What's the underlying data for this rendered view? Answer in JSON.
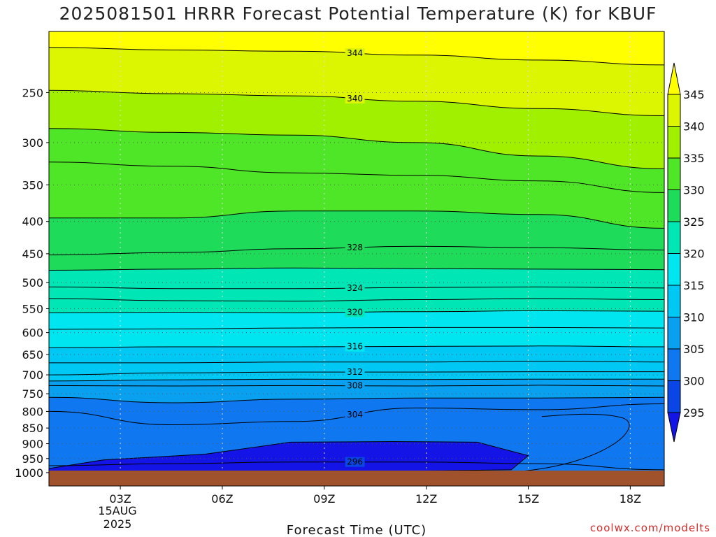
{
  "chart_data": {
    "type": "heatmap",
    "title": "2025081501 HRRR Forecast Potential Temperature (K) for KBUF",
    "xlabel": "Forecast Time (UTC)",
    "ylabel": "",
    "credit": "coolwx.com/modelts",
    "y_axis": {
      "scale": "log-pressure",
      "range": [
        1050,
        200
      ],
      "ticks": [
        "250",
        "300",
        "350",
        "400",
        "450",
        "500",
        "550",
        "600",
        "650",
        "700",
        "750",
        "800",
        "850",
        "900",
        "950",
        "1000"
      ]
    },
    "x_axis": {
      "range_hours": [
        0.9,
        19.0
      ],
      "ticks": [
        "03Z",
        "06Z",
        "09Z",
        "12Z",
        "15Z",
        "18Z"
      ],
      "date_label": [
        "15AUG",
        "2025"
      ]
    },
    "grid": true,
    "legend_position": "right",
    "colorbar": {
      "levels": [
        295,
        300,
        305,
        310,
        315,
        320,
        325,
        330,
        335,
        340,
        345
      ],
      "level_labels": [
        "295",
        "300",
        "305",
        "310",
        "315",
        "320",
        "325",
        "330",
        "335",
        "340",
        "345"
      ],
      "colors": [
        "#1414e6",
        "#0a46e6",
        "#0f78f0",
        "#0aa0f0",
        "#00c8f5",
        "#00e6f0",
        "#00e6b4",
        "#1edc5a",
        "#50e628",
        "#a0f000",
        "#dcf500",
        "#ffff00"
      ]
    },
    "ground_color": "#a0522d",
    "contour_lines": [
      {
        "value": 344,
        "pressure": [
          212,
          214,
          215,
          218,
          222,
          226
        ],
        "label": "344"
      },
      {
        "value": 340,
        "pressure": [
          248,
          251,
          253,
          258,
          265,
          272
        ],
        "label": "340"
      },
      {
        "value": 336,
        "pressure": [
          285,
          289,
          292,
          300,
          315,
          330
        ]
      },
      {
        "value": 332,
        "pressure": [
          322,
          327,
          335,
          338,
          345,
          360
        ]
      },
      {
        "value": 330,
        "pressure": [
          395,
          395,
          385,
          385,
          390,
          410
        ]
      },
      {
        "value": 328,
        "pressure": [
          452,
          448,
          442,
          438,
          440,
          444
        ],
        "label": "328"
      },
      {
        "value": 326,
        "pressure": [
          478,
          476,
          474,
          475,
          476,
          477
        ]
      },
      {
        "value": 324,
        "pressure": [
          508,
          511,
          511,
          509,
          508,
          510
        ],
        "label": "324"
      },
      {
        "value": 322,
        "pressure": [
          530,
          534,
          535,
          532,
          530,
          532
        ]
      },
      {
        "value": 320,
        "pressure": [
          558,
          557,
          558,
          556,
          554,
          555
        ],
        "label": "320"
      },
      {
        "value": 318,
        "pressure": [
          593,
          592,
          590,
          589,
          589,
          590
        ]
      },
      {
        "value": 316,
        "pressure": [
          634,
          632,
          632,
          631,
          630,
          632
        ],
        "label": "316"
      },
      {
        "value": 314,
        "pressure": [
          670,
          670,
          668,
          668,
          666,
          668
        ]
      },
      {
        "value": 312,
        "pressure": [
          700,
          695,
          693,
          693,
          692,
          692
        ],
        "label": "312"
      },
      {
        "value": 310,
        "pressure": [
          716,
          713,
          711,
          712,
          711,
          711
        ]
      },
      {
        "value": 308,
        "pressure": [
          728,
          729,
          728,
          729,
          727,
          729
        ],
        "label": "308"
      },
      {
        "value": 306,
        "pressure": [
          760,
          775,
          765,
          762,
          762,
          760
        ]
      },
      {
        "value": 304,
        "pressure": [
          800,
          840,
          830,
          790,
          795,
          778
        ],
        "label": "304"
      },
      {
        "value": 296,
        "pressure": [
          975,
          968,
          962,
          962,
          968,
          990
        ],
        "label": "296"
      }
    ]
  }
}
